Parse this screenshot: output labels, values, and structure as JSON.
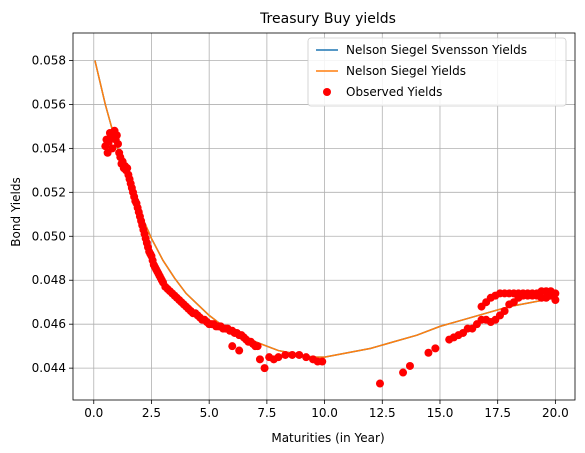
{
  "chart_data": {
    "type": "line",
    "title": "Treasury Buy yields",
    "xlabel": "Maturities (in Year)",
    "ylabel": "Bond Yields",
    "xlim": [
      -0.9,
      20.85
    ],
    "ylim": [
      0.04255,
      0.05925
    ],
    "xticks": [
      0.0,
      2.5,
      5.0,
      7.5,
      10.0,
      12.5,
      15.0,
      17.5,
      20.0
    ],
    "xtick_labels": [
      "0.0",
      "2.5",
      "5.0",
      "7.5",
      "10.0",
      "12.5",
      "15.0",
      "17.5",
      "20.0"
    ],
    "yticks": [
      0.044,
      0.046,
      0.048,
      0.05,
      0.052,
      0.054,
      0.056,
      0.058
    ],
    "ytick_labels": [
      "0.044",
      "0.046",
      "0.048",
      "0.050",
      "0.052",
      "0.054",
      "0.056",
      "0.058"
    ],
    "grid": true,
    "legend_position": "top-right",
    "series": [
      {
        "name": "Nelson Siegel Svensson Yields",
        "kind": "line",
        "color": "#1f77b4",
        "x": [
          0.05,
          0.5,
          1.0,
          1.5,
          2.0,
          2.5,
          3.0,
          3.5,
          4.0,
          4.5,
          5.0,
          5.5,
          6.0,
          6.5,
          7.0,
          7.5,
          8.0,
          8.5,
          9.0,
          9.5,
          10.0,
          11.0,
          12.0,
          13.0,
          14.0,
          15.0,
          16.0,
          17.0,
          18.0,
          19.0,
          20.0
        ],
        "y": [
          0.058,
          0.056,
          0.0541,
          0.0525,
          0.0511,
          0.0499,
          0.0489,
          0.0481,
          0.0474,
          0.0469,
          0.0464,
          0.046,
          0.0457,
          0.0454,
          0.0452,
          0.045,
          0.0448,
          0.0447,
          0.0446,
          0.0445,
          0.0445,
          0.0447,
          0.0449,
          0.0452,
          0.0455,
          0.0459,
          0.0462,
          0.0465,
          0.0468,
          0.047,
          0.0472
        ]
      },
      {
        "name": "Nelson Siegel Yields",
        "kind": "line",
        "color": "#ff7f0e",
        "x": [
          0.05,
          0.5,
          1.0,
          1.5,
          2.0,
          2.5,
          3.0,
          3.5,
          4.0,
          4.5,
          5.0,
          5.5,
          6.0,
          6.5,
          7.0,
          7.5,
          8.0,
          8.5,
          9.0,
          9.5,
          10.0,
          11.0,
          12.0,
          13.0,
          14.0,
          15.0,
          16.0,
          17.0,
          18.0,
          19.0,
          20.0
        ],
        "y": [
          0.058,
          0.056,
          0.0541,
          0.0525,
          0.0511,
          0.0499,
          0.0489,
          0.0481,
          0.0474,
          0.0469,
          0.0464,
          0.046,
          0.0457,
          0.0454,
          0.0452,
          0.045,
          0.0448,
          0.0447,
          0.0446,
          0.0445,
          0.0445,
          0.0447,
          0.0449,
          0.0452,
          0.0455,
          0.0459,
          0.0462,
          0.0465,
          0.0468,
          0.047,
          0.0472
        ]
      },
      {
        "name": "Observed Yields",
        "kind": "scatter",
        "color": "#ff0000",
        "x": [
          0.5,
          0.55,
          0.6,
          0.65,
          0.7,
          0.75,
          0.8,
          0.85,
          0.9,
          0.95,
          1.0,
          1.05,
          1.1,
          1.15,
          1.2,
          1.25,
          1.3,
          1.35,
          1.4,
          1.45,
          1.5,
          1.55,
          1.6,
          1.65,
          1.7,
          1.75,
          1.8,
          1.85,
          1.9,
          1.95,
          2.0,
          2.05,
          2.1,
          2.15,
          2.2,
          2.25,
          2.3,
          2.35,
          2.4,
          2.45,
          2.5,
          2.55,
          2.6,
          2.65,
          2.7,
          2.75,
          2.8,
          2.85,
          2.9,
          2.95,
          3.0,
          3.1,
          3.2,
          3.3,
          3.4,
          3.5,
          3.6,
          3.7,
          3.8,
          3.9,
          4.0,
          4.1,
          4.2,
          4.3,
          4.4,
          4.5,
          4.6,
          4.7,
          4.8,
          4.9,
          5.0,
          5.1,
          5.2,
          5.3,
          5.4,
          5.5,
          5.6,
          5.7,
          5.8,
          5.9,
          6.0,
          6.1,
          6.2,
          6.3,
          6.4,
          6.5,
          6.6,
          6.7,
          6.8,
          6.9,
          7.0,
          7.1,
          6.0,
          6.3,
          7.2,
          7.4,
          7.6,
          7.8,
          8.0,
          8.3,
          8.6,
          8.9,
          9.2,
          9.5,
          9.7,
          9.9,
          12.4,
          13.4,
          13.7,
          14.5,
          14.8,
          15.4,
          15.6,
          15.8,
          16.0,
          16.2,
          16.4,
          16.6,
          16.8,
          17.0,
          17.2,
          17.4,
          17.6,
          17.8,
          18.0,
          18.2,
          18.4,
          18.6,
          18.8,
          19.0,
          19.2,
          19.4,
          19.6,
          19.8,
          20.0,
          16.8,
          17.0,
          17.2,
          17.4,
          17.6,
          17.8,
          18.0,
          18.2,
          18.4,
          18.6,
          18.8,
          19.0,
          19.2,
          19.4,
          19.6,
          19.8,
          20.0
        ],
        "y": [
          0.0541,
          0.0544,
          0.0538,
          0.0543,
          0.0547,
          0.0546,
          0.054,
          0.0545,
          0.0548,
          0.0544,
          0.0546,
          0.0542,
          0.0538,
          0.0536,
          0.0533,
          0.0534,
          0.0531,
          0.0532,
          0.053,
          0.0531,
          0.0528,
          0.0526,
          0.0524,
          0.0522,
          0.052,
          0.0518,
          0.0516,
          0.0515,
          0.0513,
          0.0511,
          0.0509,
          0.0507,
          0.0505,
          0.0503,
          0.0501,
          0.0499,
          0.0497,
          0.0495,
          0.0493,
          0.0492,
          0.0491,
          0.0489,
          0.0487,
          0.0486,
          0.0485,
          0.0484,
          0.0483,
          0.0482,
          0.0481,
          0.048,
          0.0479,
          0.0477,
          0.0476,
          0.0475,
          0.0474,
          0.0473,
          0.0472,
          0.0471,
          0.047,
          0.0469,
          0.0468,
          0.0467,
          0.0466,
          0.0465,
          0.0465,
          0.0464,
          0.0463,
          0.0462,
          0.0462,
          0.0461,
          0.046,
          0.046,
          0.046,
          0.0459,
          0.0459,
          0.0459,
          0.0458,
          0.0458,
          0.0458,
          0.0457,
          0.0457,
          0.0456,
          0.0456,
          0.0455,
          0.0455,
          0.0454,
          0.0453,
          0.0452,
          0.0452,
          0.0451,
          0.045,
          0.045,
          0.045,
          0.0448,
          0.0444,
          0.044,
          0.0445,
          0.0444,
          0.0445,
          0.0446,
          0.0446,
          0.0446,
          0.0445,
          0.0444,
          0.0443,
          0.0443,
          0.0433,
          0.0438,
          0.0441,
          0.0447,
          0.0449,
          0.0453,
          0.0454,
          0.0455,
          0.0456,
          0.0458,
          0.0458,
          0.046,
          0.0462,
          0.0462,
          0.0461,
          0.0462,
          0.0464,
          0.0466,
          0.0469,
          0.047,
          0.0472,
          0.0473,
          0.0473,
          0.0473,
          0.0473,
          0.0472,
          0.0472,
          0.0473,
          0.0471,
          0.0468,
          0.047,
          0.0472,
          0.0473,
          0.0474,
          0.0474,
          0.0474,
          0.0474,
          0.0474,
          0.0474,
          0.0474,
          0.0474,
          0.0474,
          0.0475,
          0.0475,
          0.0475,
          0.0474
        ]
      }
    ]
  }
}
